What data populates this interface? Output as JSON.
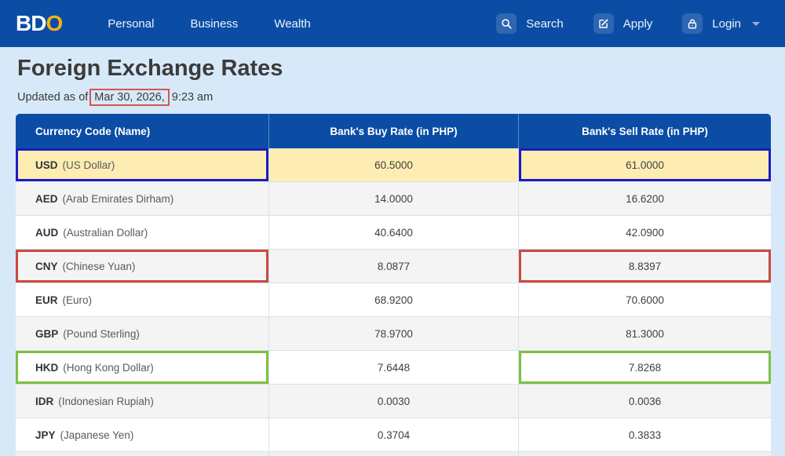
{
  "nav": {
    "logo": {
      "part1": "BD",
      "part2": "O"
    },
    "links": [
      "Personal",
      "Business",
      "Wealth"
    ],
    "actions": [
      {
        "icon": "search-icon",
        "label": "Search"
      },
      {
        "icon": "apply-icon",
        "label": "Apply"
      },
      {
        "icon": "lock-icon",
        "label": "Login",
        "has_caret": true
      }
    ]
  },
  "page": {
    "title": "Foreign Exchange Rates",
    "updated_prefix": "Updated as of",
    "updated_date": "Mar 30, 2026,",
    "updated_time": "9:23 am"
  },
  "table": {
    "headers": [
      "Currency Code (Name)",
      "Bank's Buy Rate (in PHP)",
      "Bank's Sell Rate (in PHP)"
    ],
    "rows": [
      {
        "code": "USD",
        "name": "(US Dollar)",
        "buy": "60.5000",
        "sell": "61.0000",
        "highlight": "yellow",
        "outline": "blue"
      },
      {
        "code": "AED",
        "name": "(Arab Emirates Dirham)",
        "buy": "14.0000",
        "sell": "16.6200"
      },
      {
        "code": "AUD",
        "name": "(Australian Dollar)",
        "buy": "40.6400",
        "sell": "42.0900"
      },
      {
        "code": "CNY",
        "name": "(Chinese Yuan)",
        "buy": "8.0877",
        "sell": "8.8397",
        "outline": "red"
      },
      {
        "code": "EUR",
        "name": "(Euro)",
        "buy": "68.9200",
        "sell": "70.6000"
      },
      {
        "code": "GBP",
        "name": "(Pound Sterling)",
        "buy": "78.9700",
        "sell": "81.3000"
      },
      {
        "code": "HKD",
        "name": "(Hong Kong Dollar)",
        "buy": "7.6448",
        "sell": "7.8268",
        "outline": "green"
      },
      {
        "code": "IDR",
        "name": "(Indonesian Rupiah)",
        "buy": "0.0030",
        "sell": "0.0036"
      },
      {
        "code": "JPY",
        "name": "(Japanese Yen)",
        "buy": "0.3704",
        "sell": "0.3833"
      }
    ]
  },
  "colors": {
    "brand_blue": "#0b4da5",
    "accent_yellow": "#f2b216",
    "highlight_row_yellow": "#fdedb3",
    "annotation_blue": "#1c1cbe",
    "annotation_red": "#cb4942",
    "annotation_green": "#7dc142",
    "date_box_red": "#d9534f",
    "page_background": "#d7e9f8"
  }
}
